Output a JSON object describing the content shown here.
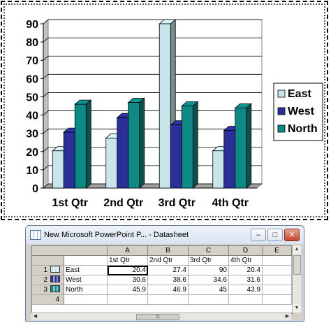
{
  "chart_data": {
    "type": "bar",
    "categories": [
      "1st Qtr",
      "2nd Qtr",
      "3rd Qtr",
      "4th Qtr"
    ],
    "series": [
      {
        "name": "East",
        "values": [
          20.4,
          27.4,
          90,
          20.4
        ]
      },
      {
        "name": "West",
        "values": [
          30.6,
          38.6,
          34.6,
          31.6
        ]
      },
      {
        "name": "North",
        "values": [
          45.9,
          46.9,
          45,
          43.9
        ]
      }
    ],
    "ylim": [
      0,
      90
    ],
    "yticks": [
      "0",
      "10",
      "20",
      "30",
      "40",
      "50",
      "60",
      "70",
      "80",
      "90"
    ],
    "grid": true,
    "legend_position": "right",
    "style": "3d-clustered-column"
  },
  "colors": {
    "East": "#c6e6ec",
    "West": "#2b2f9c",
    "North": "#0d8a86"
  },
  "datasheet": {
    "title": "New Microsoft PowerPoint P... - Datasheet",
    "columns": [
      "A",
      "B",
      "C",
      "D",
      "E"
    ],
    "header_row": [
      "1st Qtr",
      "2nd Qtr",
      "3rd Qtr",
      "4th Qtr",
      ""
    ],
    "rows": [
      {
        "num": "1",
        "label": "East",
        "values": [
          "20.4",
          "27.4",
          "90",
          "20.4"
        ]
      },
      {
        "num": "2",
        "label": "West",
        "values": [
          "30.6",
          "38.6",
          "34.6",
          "31.6"
        ]
      },
      {
        "num": "3",
        "label": "North",
        "values": [
          "45.9",
          "46.9",
          "45",
          "43.9"
        ]
      },
      {
        "num": "4",
        "label": "",
        "values": [
          "",
          "",
          "",
          ""
        ]
      }
    ],
    "minimize": "–",
    "maximize": "□",
    "close": "✕"
  }
}
